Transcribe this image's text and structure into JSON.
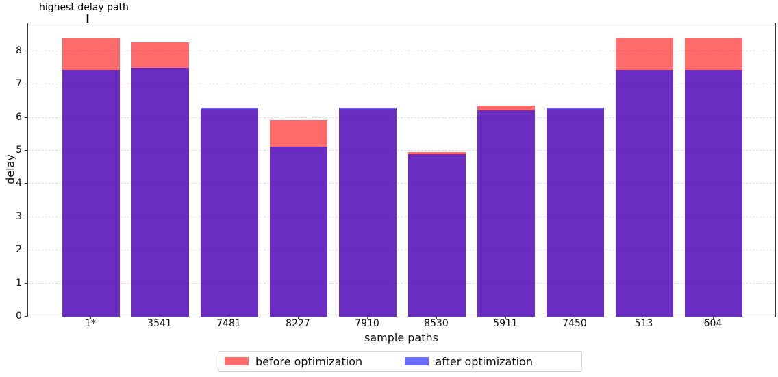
{
  "chart_data": {
    "type": "bar",
    "bar_mode": "overlay",
    "title": "",
    "xlabel": "sample paths",
    "ylabel": "delay",
    "categories": [
      "1*",
      "3541",
      "7481",
      "8227",
      "7910",
      "8530",
      "5911",
      "7450",
      "513",
      "604"
    ],
    "series": [
      {
        "name": "before optimization",
        "values": [
          8.38,
          8.27,
          6.25,
          5.93,
          6.25,
          4.96,
          6.37,
          6.25,
          8.38,
          8.38
        ],
        "fill": "rgba(255,0,0,0.58)",
        "rendered_color": "#ff6b6b"
      },
      {
        "name": "after optimization",
        "values": [
          7.43,
          7.49,
          6.3,
          5.13,
          6.3,
          4.9,
          6.21,
          6.3,
          7.43,
          7.43
        ],
        "fill": "rgba(0,0,255,0.58)",
        "rendered_color": "#6b6bfa"
      }
    ],
    "overlap_rendered_color": "#6b2dc1",
    "ylim": [
      0,
      8.84
    ],
    "yticks": [
      0,
      1,
      2,
      3,
      4,
      5,
      6,
      7,
      8
    ],
    "grid": "horizontal dashed",
    "legend_position": "bottom center",
    "annotation": {
      "text": "highest delay path",
      "target_category": "1*"
    }
  }
}
